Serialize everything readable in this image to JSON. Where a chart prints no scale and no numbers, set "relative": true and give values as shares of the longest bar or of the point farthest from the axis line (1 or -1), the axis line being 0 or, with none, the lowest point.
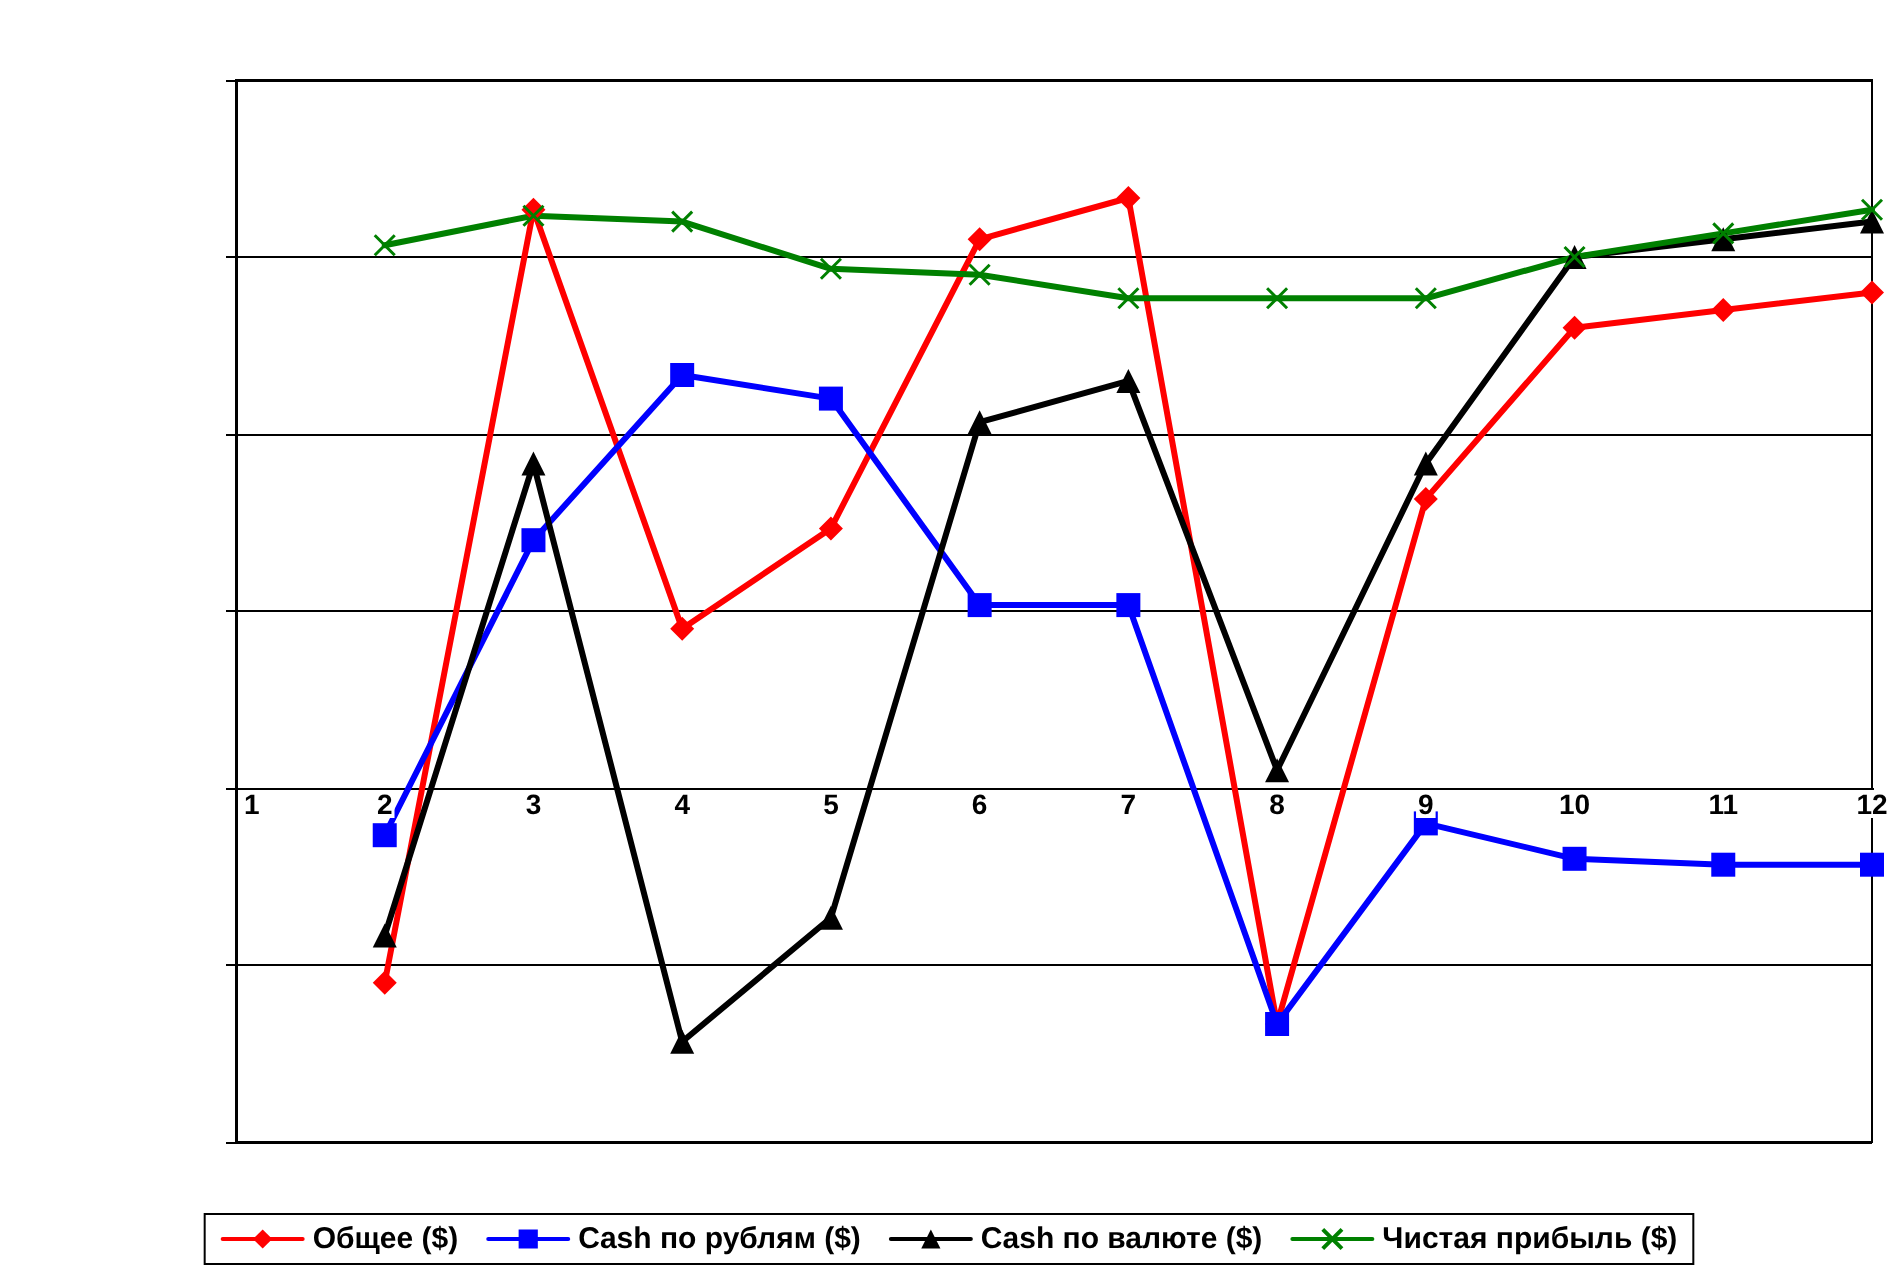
{
  "chart_data": {
    "type": "line",
    "relative": true,
    "categories": [
      "1",
      "2",
      "3",
      "4",
      "5",
      "6",
      "7",
      "8",
      "9",
      "10",
      "11",
      "12"
    ],
    "series": [
      {
        "name": "Общее ($)",
        "color": "#ff0000",
        "marker": "diamond",
        "values": [
          null,
          -0.33,
          0.98,
          0.27,
          0.44,
          0.93,
          1,
          -0.4,
          0.49,
          0.78,
          0.81,
          0.84
        ]
      },
      {
        "name": "Cash по рублям ($)",
        "color": "#0000ff",
        "marker": "square",
        "values": [
          null,
          -0.08,
          0.42,
          0.7,
          0.66,
          0.31,
          0.31,
          -0.4,
          -0.06,
          -0.12,
          -0.13,
          -0.13
        ]
      },
      {
        "name": "Cash по валюте ($)",
        "color": "#000000",
        "marker": "triangle",
        "values": [
          null,
          -0.25,
          0.55,
          -0.43,
          -0.22,
          0.62,
          0.69,
          0.03,
          0.55,
          0.9,
          0.93,
          0.96
        ]
      },
      {
        "name": "Чистая прибыль ($)",
        "color": "#008000",
        "marker": "cross",
        "values": [
          null,
          0.92,
          0.97,
          0.96,
          0.88,
          0.87,
          0.83,
          0.83,
          0.83,
          0.9,
          0.94,
          0.98
        ]
      }
    ],
    "grid": "y",
    "legend": "bottom",
    "line_style": "solid"
  }
}
